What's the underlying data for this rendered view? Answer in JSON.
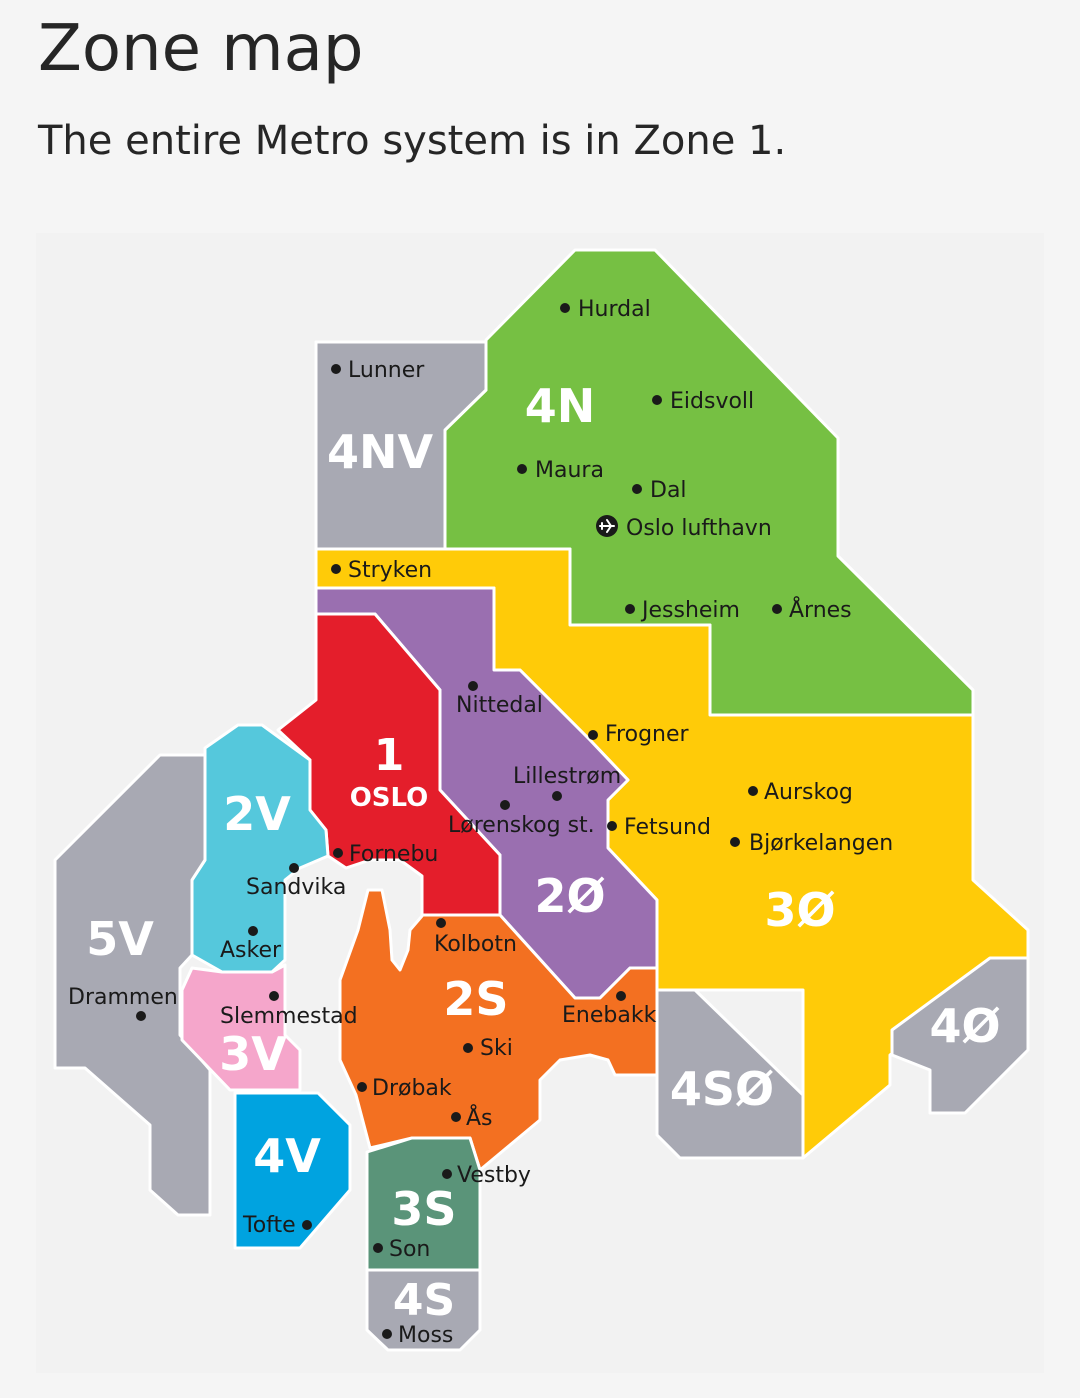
{
  "header": {
    "title": "Zone map",
    "subtitle": "The entire Metro system is in Zone 1."
  },
  "colors": {
    "zone_1": "#e41e2b",
    "zone_2_purple": "#9a6fb0",
    "zone_2v": "#55c8dc",
    "zone_2s": "#f37021",
    "zone_3_yellow": "#ffcb08",
    "zone_3v": "#f5a6cb",
    "zone_3s": "#5a9479",
    "zone_4n": "#76c043",
    "zone_4v": "#00a3e0",
    "zone_grey": "#a8a9b3"
  },
  "zones": {
    "z1_num": "1",
    "z1_name": "OSLO",
    "z2v": "2V",
    "z2o": "2Ø",
    "z2s": "2S",
    "z3v": "3V",
    "z3o": "3Ø",
    "z3s": "3S",
    "z4n": "4N",
    "z4nv": "4NV",
    "z4v": "4V",
    "z4so": "4SØ",
    "z4o": "4Ø",
    "z4s": "4S",
    "z5v": "5V"
  },
  "places": {
    "hurdal": "Hurdal",
    "lunner": "Lunner",
    "eidsvoll": "Eidsvoll",
    "maura": "Maura",
    "dal": "Dal",
    "oslo_lufthavn": "Oslo lufthavn",
    "stryken": "Stryken",
    "jessheim": "Jessheim",
    "arnes": "Årnes",
    "nittedal": "Nittedal",
    "frogner": "Frogner",
    "lillestrom": "Lillestrøm",
    "aurskog": "Aurskog",
    "lorenskog": "Lørenskog st.",
    "fetsund": "Fetsund",
    "bjorkelangen": "Bjørkelangen",
    "fornebu": "Fornebu",
    "sandvika": "Sandvika",
    "asker": "Asker",
    "kolbotn": "Kolbotn",
    "drammen": "Drammen",
    "slemmestad": "Slemmestad",
    "enebakk": "Enebakk",
    "ski": "Ski",
    "drobak": "Drøbak",
    "as": "Ås",
    "vestby": "Vestby",
    "tofte": "Tofte",
    "son": "Son",
    "moss": "Moss"
  },
  "icons": {
    "airport": "airplane-icon"
  }
}
